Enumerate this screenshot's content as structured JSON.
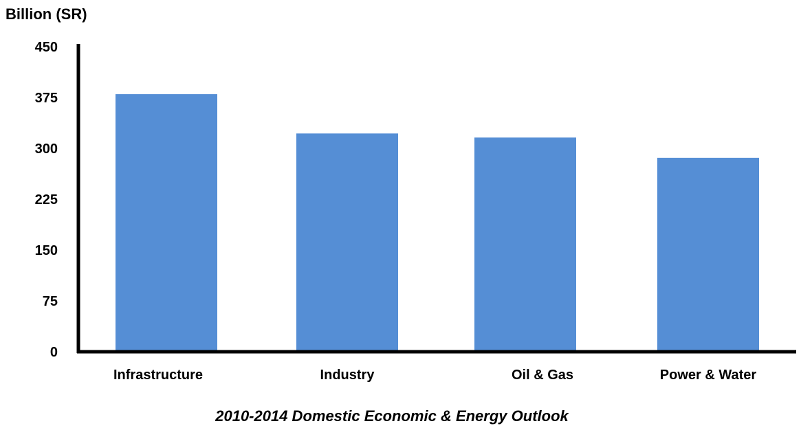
{
  "chart_data": {
    "type": "bar",
    "title": "",
    "ylabel": "Billion (SR)",
    "xlabel": "",
    "caption": "2010-2014 Domestic Economic & Energy Outlook",
    "categories": [
      "Infrastructure",
      "Industry",
      "Oil & Gas",
      "Power & Water"
    ],
    "values": [
      380,
      322,
      316,
      286
    ],
    "ylim": [
      0,
      450
    ],
    "yticks": [
      "0",
      "75",
      "150",
      "225",
      "300",
      "375",
      "450"
    ],
    "grid": false,
    "legend": "none",
    "bar_color": "#558ed5",
    "axis_color": "#000000"
  }
}
